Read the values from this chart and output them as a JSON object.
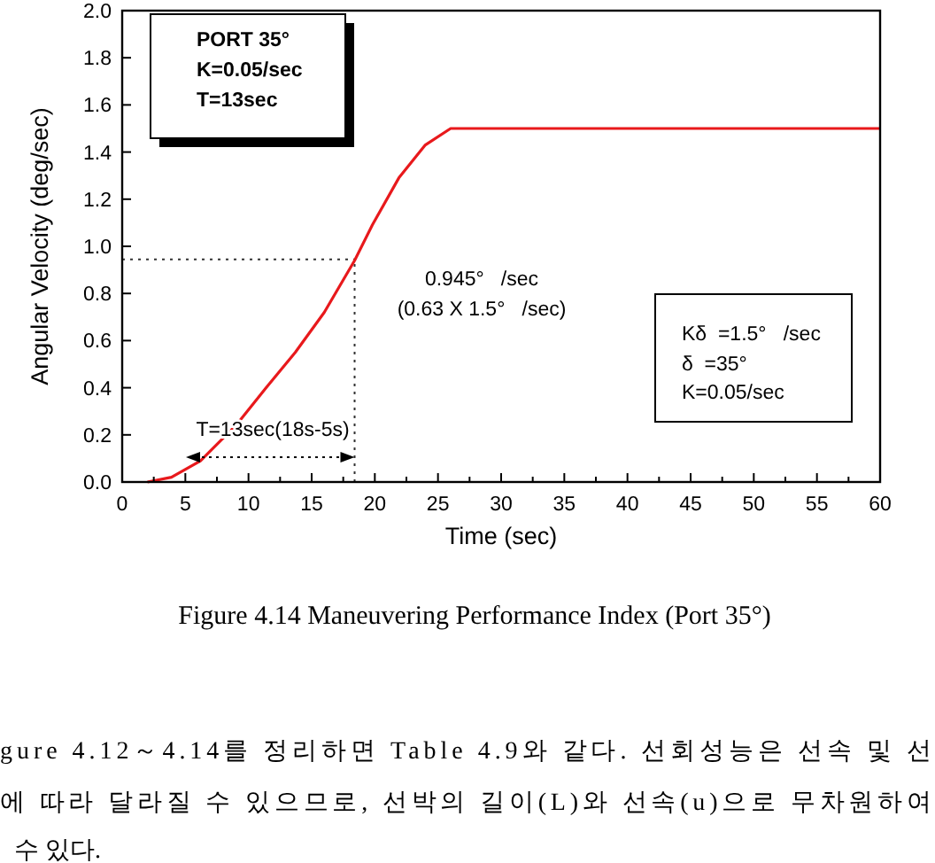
{
  "chart_data": {
    "type": "line",
    "xlabel": "Time (sec)",
    "ylabel": "Angular Velocity (deg/sec)",
    "xlim": [
      0,
      60
    ],
    "xticks": [
      0,
      5,
      10,
      15,
      20,
      25,
      30,
      35,
      40,
      45,
      50,
      55,
      60
    ],
    "ylim": [
      0,
      2.0
    ],
    "yticks": [
      {
        "value": 0,
        "label": "0.0"
      },
      {
        "value": 0.2,
        "label": "0.2"
      },
      {
        "value": 0.4,
        "label": "0.4"
      },
      {
        "value": 0.6,
        "label": "0.6"
      },
      {
        "value": 0.8,
        "label": "0.8"
      },
      {
        "value": 1.0,
        "label": "1.0"
      },
      {
        "value": 1.2,
        "label": "1.2"
      },
      {
        "value": 1.4,
        "label": "1.4"
      },
      {
        "value": 1.6,
        "label": "1.6"
      },
      {
        "value": 1.8,
        "label": "1.8"
      },
      {
        "value": 2.0,
        "label": "2.0"
      }
    ],
    "x": [
      2,
      3.9,
      6.2,
      9,
      11.4,
      13.7,
      16,
      18.4,
      19.8,
      21.9,
      24,
      26,
      60
    ],
    "series": [
      {
        "color": "#e8191c",
        "values": [
          0,
          0.02,
          0.09,
          0.24,
          0.4,
          0.55,
          0.72,
          0.94,
          1.09,
          1.29,
          1.43,
          1.5,
          1.5
        ]
      }
    ],
    "ref_lines": [
      {
        "axis": "y",
        "value": 0.945,
        "line_style": "dotted"
      },
      {
        "axis": "x",
        "value": 18.4,
        "line_style": "dotted"
      }
    ],
    "annotations": [
      "PORT 35°",
      "K=0.05/sec",
      "T=13sec",
      "0.945°   /sec",
      "(0.63 X 1.5°   /sec)",
      "Kδ  =1.5°   /sec",
      "δ  =35°",
      "K=0.05/sec",
      "T=13sec(18s-5s)",
      "Figure 4.14 Maneuvering Performance Index (Port 35°)",
      "gure 4.12～4.14를 정리하면 Table 4.9와 같다. 선회성능은 선속 및 선",
      "에 따라 달라질 수 있으므로, 선박의 길이(L)와 선속(u)으로 무차원하여",
      "수 있다."
    ],
    "grid": false,
    "marker": "none",
    "line_style": "solid"
  }
}
